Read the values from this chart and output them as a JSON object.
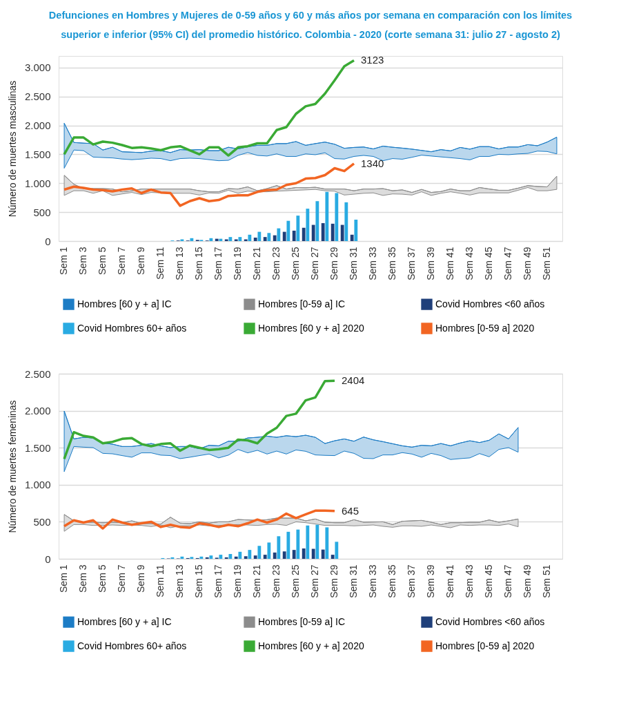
{
  "chart_data": [
    {
      "type": "line",
      "title": "Defunciones en Hombres y Mujeres de 0-59 años y 60 y más años por semana en comparación con los límites superior e inferior (95% CI) del promedio histórico. Colombia - 2020 (corte semana 31: julio 27 - agosto 2)",
      "ylabel": "Número de muertes masculinas",
      "categories": [
        "Sem 1",
        null,
        "Sem 3",
        null,
        "Sem 5",
        null,
        "Sem 7",
        null,
        "Sem 9",
        null,
        "Sem 11",
        null,
        "Sem 13",
        null,
        "Sem 15",
        null,
        "Sem 17",
        null,
        "Sem 19",
        null,
        "Sem 21",
        null,
        "Sem 23",
        null,
        "Sem 25",
        null,
        "Sem 27",
        null,
        "Sem 29",
        null,
        "Sem 31",
        null,
        "Sem 33",
        null,
        "Sem 35",
        null,
        "Sem 37",
        null,
        "Sem 39",
        null,
        "Sem 41",
        null,
        "Sem 43",
        null,
        "Sem 45",
        null,
        "Sem 47",
        null,
        "Sem 49",
        null,
        "Sem 51",
        null
      ],
      "ylim": [
        0,
        3200
      ],
      "yticks": [
        0,
        500,
        {
          "value": 1000,
          "label": "1.000"
        },
        {
          "value": 1500,
          "label": "1.500"
        },
        {
          "value": 2000,
          "label": "2.000"
        },
        {
          "value": 2500,
          "label": "2.500"
        },
        {
          "value": 3000,
          "label": "3.000"
        }
      ],
      "grid": "y",
      "legend": "bottom",
      "series": [
        {
          "name": "Hombres [60 y + a] IC",
          "type": "line",
          "color": "#1c7cc5",
          "values": [
            2037,
            1704,
            1693,
            1685,
            1574,
            1622,
            1544,
            1537,
            1530,
            1555,
            1563,
            1530,
            1581,
            1574,
            1581,
            1563,
            1563,
            1622,
            1593,
            1630,
            1655,
            1655,
            1685,
            1685,
            1720,
            1655,
            1685,
            1711,
            1674,
            1604,
            1619,
            1626,
            1593,
            1641,
            1622,
            1607,
            1589,
            1567,
            1544,
            1581,
            1559,
            1619,
            1589,
            1633,
            1633,
            1593,
            1626,
            1626,
            1667,
            1648,
            1711,
            1796
          ],
          "upper": [
            2037,
            1704,
            1693,
            1685,
            1574,
            1622,
            1544,
            1537,
            1530,
            1555,
            1563,
            1530,
            1581,
            1574,
            1581,
            1563,
            1563,
            1622,
            1593,
            1630,
            1655,
            1655,
            1685,
            1685,
            1720,
            1655,
            1685,
            1711,
            1674,
            1604,
            1619,
            1626,
            1593,
            1641,
            1622,
            1607,
            1589,
            1567,
            1544,
            1581,
            1559,
            1619,
            1589,
            1633,
            1633,
            1593,
            1626,
            1626,
            1667,
            1648,
            1711,
            1796
          ],
          "lower": [
            1259,
            1574,
            1563,
            1452,
            1444,
            1437,
            1418,
            1407,
            1418,
            1433,
            1426,
            1389,
            1426,
            1433,
            1426,
            1407,
            1389,
            1396,
            1481,
            1530,
            1481,
            1470,
            1507,
            1463,
            1463,
            1507,
            1493,
            1526,
            1426,
            1418,
            1463,
            1481,
            1463,
            1389,
            1426,
            1415,
            1448,
            1485,
            1470,
            1455,
            1441,
            1426,
            1404,
            1463,
            1463,
            1500,
            1493,
            1507,
            1515,
            1555,
            1548,
            1507
          ]
        },
        {
          "name": "Hombres [0-59 a] IC",
          "type": "line",
          "color": "#8c8c8c",
          "values": [
            1137,
            982,
            907,
            907,
            907,
            900,
            852,
            870,
            900,
            900,
            900,
            900,
            900,
            900,
            870,
            852,
            852,
            907,
            900,
            937,
            870,
            907,
            959,
            900,
            926,
            922,
            930,
            900,
            900,
            900,
            870,
            900,
            900,
            907,
            870,
            885,
            841,
            893,
            841,
            856,
            900,
            870,
            870,
            926,
            900,
            878,
            878,
            915,
            959,
            944,
            937,
            1122
          ],
          "upper": [
            1137,
            982,
            907,
            907,
            907,
            900,
            852,
            870,
            900,
            900,
            900,
            900,
            900,
            900,
            870,
            852,
            852,
            907,
            900,
            937,
            870,
            907,
            959,
            900,
            926,
            922,
            930,
            900,
            900,
            900,
            870,
            900,
            900,
            907,
            870,
            885,
            841,
            893,
            841,
            856,
            900,
            870,
            870,
            926,
            900,
            878,
            878,
            915,
            959,
            944,
            937,
            1122
          ],
          "lower": [
            789,
            870,
            870,
            826,
            870,
            789,
            815,
            841,
            804,
            841,
            833,
            826,
            826,
            826,
            796,
            833,
            826,
            878,
            826,
            863,
            852,
            852,
            863,
            870,
            878,
            885,
            893,
            870,
            863,
            796,
            811,
            826,
            833,
            789,
            815,
            811,
            796,
            852,
            789,
            826,
            852,
            826,
            796,
            833,
            833,
            833,
            833,
            878,
            926,
            870,
            870,
            893
          ]
        },
        {
          "name": "Covid Hombres <60 años",
          "type": "bar",
          "color": "#1f3f7a",
          "values": [
            null,
            null,
            null,
            null,
            null,
            null,
            null,
            null,
            null,
            null,
            null,
            null,
            10,
            10,
            20,
            10,
            40,
            30,
            30,
            30,
            60,
            70,
            100,
            160,
            180,
            230,
            280,
            310,
            300,
            280,
            110,
            null,
            null,
            null,
            null,
            null,
            null,
            null,
            null,
            null,
            null,
            null,
            null,
            null,
            null,
            null,
            null,
            null,
            null,
            null,
            null,
            null
          ]
        },
        {
          "name": "Covid Hombres 60+ años",
          "type": "bar",
          "color": "#29abe2",
          "values": [
            null,
            null,
            null,
            null,
            null,
            null,
            null,
            null,
            null,
            null,
            null,
            10,
            30,
            50,
            20,
            50,
            40,
            70,
            70,
            110,
            160,
            140,
            220,
            350,
            440,
            560,
            690,
            850,
            830,
            670,
            370,
            null,
            null,
            null,
            null,
            null,
            null,
            null,
            null,
            null,
            null,
            null,
            null,
            null,
            null,
            null,
            null,
            null,
            null,
            null,
            null,
            null
          ]
        },
        {
          "name": "Hombres [60 y + a] 2020",
          "color": "#3aaa35",
          "values": [
            1500,
            1790,
            1790,
            1670,
            1720,
            1700,
            1660,
            1610,
            1620,
            1600,
            1570,
            1620,
            1640,
            1570,
            1500,
            1620,
            1620,
            1480,
            1620,
            1640,
            1690,
            1690,
            1920,
            1970,
            2200,
            2330,
            2370,
            2550,
            2780,
            3020,
            3123,
            null,
            null,
            null,
            null,
            null,
            null,
            null,
            null,
            null,
            null,
            null,
            null,
            null,
            null,
            null,
            null,
            null,
            null,
            null,
            null,
            null
          ],
          "value_labels": [
            null,
            null,
            null,
            null,
            null,
            null,
            null,
            null,
            null,
            null,
            null,
            null,
            null,
            null,
            null,
            null,
            null,
            null,
            null,
            null,
            null,
            null,
            null,
            null,
            null,
            null,
            null,
            null,
            null,
            null,
            "3123",
            null,
            null,
            null,
            null,
            null,
            null,
            null,
            null,
            null,
            null,
            null,
            null,
            null,
            null,
            null,
            null,
            null,
            null,
            null,
            null,
            null
          ]
        },
        {
          "name": "Hombres [0-59 a] 2020",
          "color": "#f26522",
          "values": [
            890,
            940,
            920,
            890,
            880,
            860,
            890,
            910,
            830,
            890,
            840,
            830,
            610,
            690,
            740,
            690,
            710,
            780,
            790,
            790,
            850,
            880,
            890,
            970,
            1000,
            1080,
            1090,
            1140,
            1260,
            1210,
            1340,
            null,
            null,
            null,
            null,
            null,
            null,
            null,
            null,
            null,
            null,
            null,
            null,
            null,
            null,
            null,
            null,
            null,
            null,
            null,
            null,
            null
          ],
          "value_labels": [
            null,
            null,
            null,
            null,
            null,
            null,
            null,
            null,
            null,
            null,
            null,
            null,
            null,
            null,
            null,
            null,
            null,
            null,
            null,
            null,
            null,
            null,
            null,
            null,
            null,
            null,
            null,
            null,
            null,
            null,
            "1340",
            null,
            null,
            null,
            null,
            null,
            null,
            null,
            null,
            null,
            null,
            null,
            null,
            null,
            null,
            null,
            null,
            null,
            null,
            null,
            null,
            null
          ]
        }
      ]
    },
    {
      "type": "line",
      "ylabel": "Número de muertes femeninas",
      "categories": [
        "Sem 1",
        null,
        "Sem 3",
        null,
        "Sem 5",
        null,
        "Sem 7",
        null,
        "Sem 9",
        null,
        "Sem 11",
        null,
        "Sem 13",
        null,
        "Sem 15",
        null,
        "Sem 17",
        null,
        "Sem 19",
        null,
        "Sem 21",
        null,
        "Sem 23",
        null,
        "Sem 25",
        null,
        "Sem 27",
        null,
        "Sem 29",
        null,
        "Sem 31",
        null,
        "Sem 33",
        null,
        "Sem 35",
        null,
        "Sem 37",
        null,
        "Sem 39",
        null,
        "Sem 41",
        null,
        "Sem 43",
        null,
        "Sem 45",
        null,
        "Sem 47",
        null,
        "Sem 49",
        null,
        "Sem 51",
        null
      ],
      "ylim": [
        0,
        2500
      ],
      "yticks": [
        0,
        500,
        {
          "value": 1000,
          "label": "1.000"
        },
        {
          "value": 1500,
          "label": "1.500"
        },
        {
          "value": 2000,
          "label": "2.000"
        },
        {
          "value": 2500,
          "label": "2.500"
        }
      ],
      "grid": "y",
      "legend": "bottom",
      "series": [
        {
          "name": "Hombres [60 y + a] IC",
          "type": "line",
          "color": "#1c7cc5",
          "values": [
            1996,
            1619,
            1641,
            1632,
            1564,
            1548,
            1517,
            1517,
            1533,
            1557,
            1526,
            1502,
            1517,
            1517,
            1486,
            1533,
            1526,
            1588,
            1588,
            1632,
            1641,
            1656,
            1641,
            1662,
            1650,
            1669,
            1641,
            1557,
            1594,
            1619,
            1588,
            1644,
            1607,
            1582,
            1554,
            1526,
            1508,
            1533,
            1526,
            1557,
            1526,
            1564,
            1594,
            1570,
            1601,
            1687,
            1619,
            1774,
            null,
            null,
            null,
            null
          ],
          "upper": [
            1996,
            1619,
            1641,
            1632,
            1564,
            1548,
            1517,
            1517,
            1533,
            1557,
            1526,
            1502,
            1517,
            1517,
            1486,
            1533,
            1526,
            1588,
            1588,
            1632,
            1641,
            1656,
            1641,
            1662,
            1650,
            1669,
            1641,
            1557,
            1594,
            1619,
            1588,
            1644,
            1607,
            1582,
            1554,
            1526,
            1508,
            1533,
            1526,
            1557,
            1526,
            1564,
            1594,
            1570,
            1601,
            1687,
            1619,
            1774,
            null,
            null,
            null,
            null
          ],
          "lower": [
            1177,
            1517,
            1508,
            1502,
            1424,
            1418,
            1394,
            1372,
            1431,
            1431,
            1400,
            1394,
            1353,
            1372,
            1394,
            1415,
            1363,
            1400,
            1477,
            1431,
            1465,
            1415,
            1455,
            1415,
            1470,
            1452,
            1403,
            1397,
            1394,
            1455,
            1424,
            1357,
            1353,
            1403,
            1403,
            1434,
            1415,
            1372,
            1424,
            1394,
            1341,
            1353,
            1363,
            1421,
            1378,
            1477,
            1502,
            1440,
            null,
            null,
            null,
            null
          ]
        },
        {
          "name": "Hombres [0-59 a] IC",
          "type": "line",
          "color": "#8c8c8c",
          "values": [
            599,
            513,
            494,
            494,
            488,
            494,
            488,
            513,
            476,
            476,
            470,
            562,
            482,
            476,
            500,
            482,
            500,
            500,
            531,
            525,
            519,
            528,
            550,
            550,
            550,
            513,
            538,
            494,
            488,
            488,
            528,
            494,
            497,
            500,
            463,
            507,
            513,
            519,
            494,
            463,
            488,
            488,
            494,
            494,
            525,
            494,
            513,
            538,
            null,
            null,
            null,
            null
          ],
          "upper": [
            599,
            513,
            494,
            494,
            488,
            494,
            488,
            513,
            476,
            476,
            470,
            562,
            482,
            476,
            500,
            482,
            500,
            500,
            531,
            525,
            519,
            528,
            550,
            550,
            550,
            513,
            538,
            494,
            488,
            488,
            528,
            494,
            497,
            500,
            463,
            507,
            513,
            519,
            494,
            463,
            488,
            488,
            494,
            494,
            525,
            494,
            513,
            538,
            null,
            null,
            null,
            null
          ],
          "lower": [
            371,
            463,
            463,
            451,
            451,
            457,
            451,
            457,
            451,
            436,
            457,
            420,
            445,
            445,
            457,
            445,
            451,
            457,
            463,
            457,
            451,
            463,
            467,
            451,
            500,
            488,
            470,
            451,
            451,
            451,
            445,
            451,
            457,
            439,
            426,
            445,
            445,
            439,
            457,
            439,
            420,
            457,
            451,
            457,
            457,
            451,
            470,
            433,
            null,
            null,
            null,
            null
          ]
        },
        {
          "name": "Covid Hombres <60 años",
          "type": "bar",
          "color": "#1f3f7a",
          "values": [
            null,
            null,
            null,
            null,
            null,
            null,
            null,
            null,
            null,
            null,
            null,
            5,
            5,
            10,
            10,
            20,
            15,
            20,
            30,
            35,
            45,
            55,
            85,
            100,
            120,
            140,
            135,
            125,
            55,
            null,
            null,
            null,
            null,
            null,
            null,
            null,
            null,
            null,
            null,
            null,
            null,
            null,
            null,
            null,
            null,
            null,
            null,
            null,
            null,
            null,
            null,
            null
          ]
        },
        {
          "name": "Covid Hombres 60+ años",
          "type": "bar",
          "color": "#29abe2",
          "values": [
            null,
            null,
            null,
            null,
            null,
            null,
            null,
            null,
            null,
            null,
            10,
            20,
            30,
            25,
            30,
            45,
            55,
            65,
            95,
            120,
            175,
            220,
            305,
            365,
            395,
            450,
            460,
            425,
            230,
            null,
            null,
            null,
            null,
            null,
            null,
            null,
            null,
            null,
            null,
            null,
            null,
            null,
            null,
            null,
            null,
            null,
            null,
            null,
            null,
            null,
            null,
            null
          ]
        },
        {
          "name": "Hombres [60 y + a] 2020",
          "color": "#3aaa35",
          "values": [
            1350,
            1710,
            1660,
            1640,
            1560,
            1580,
            1620,
            1630,
            1550,
            1520,
            1550,
            1560,
            1460,
            1530,
            1500,
            1470,
            1480,
            1500,
            1610,
            1600,
            1560,
            1690,
            1770,
            1930,
            1960,
            2140,
            2180,
            2400,
            2404,
            null,
            null,
            null,
            null,
            null,
            null,
            null,
            null,
            null,
            null,
            null,
            null,
            null,
            null,
            null,
            null,
            null,
            null,
            null,
            null,
            null,
            null,
            null
          ],
          "value_labels": [
            null,
            null,
            null,
            null,
            null,
            null,
            null,
            null,
            null,
            null,
            null,
            null,
            null,
            null,
            null,
            null,
            null,
            null,
            null,
            null,
            null,
            null,
            null,
            null,
            null,
            null,
            null,
            null,
            "2404",
            null,
            null,
            null,
            null,
            null,
            null,
            null,
            null,
            null,
            null,
            null,
            null,
            null,
            null,
            null,
            null,
            null,
            null,
            null,
            null,
            null,
            null,
            null
          ]
        },
        {
          "name": "Hombres [0-59 a] 2020",
          "color": "#f26522",
          "values": [
            440,
            520,
            490,
            520,
            410,
            530,
            490,
            460,
            480,
            500,
            430,
            460,
            430,
            420,
            480,
            460,
            430,
            460,
            440,
            480,
            530,
            490,
            530,
            610,
            550,
            600,
            650,
            650,
            645,
            null,
            null,
            null,
            null,
            null,
            null,
            null,
            null,
            null,
            null,
            null,
            null,
            null,
            null,
            null,
            null,
            null,
            null,
            null,
            null,
            null,
            null,
            null
          ],
          "value_labels": [
            null,
            null,
            null,
            null,
            null,
            null,
            null,
            null,
            null,
            null,
            null,
            null,
            null,
            null,
            null,
            null,
            null,
            null,
            null,
            null,
            null,
            null,
            null,
            null,
            null,
            null,
            null,
            null,
            "645",
            null,
            null,
            null,
            null,
            null,
            null,
            null,
            null,
            null,
            null,
            null,
            null,
            null,
            null,
            null,
            null,
            null,
            null,
            null,
            null,
            null,
            null,
            null
          ]
        }
      ]
    }
  ]
}
